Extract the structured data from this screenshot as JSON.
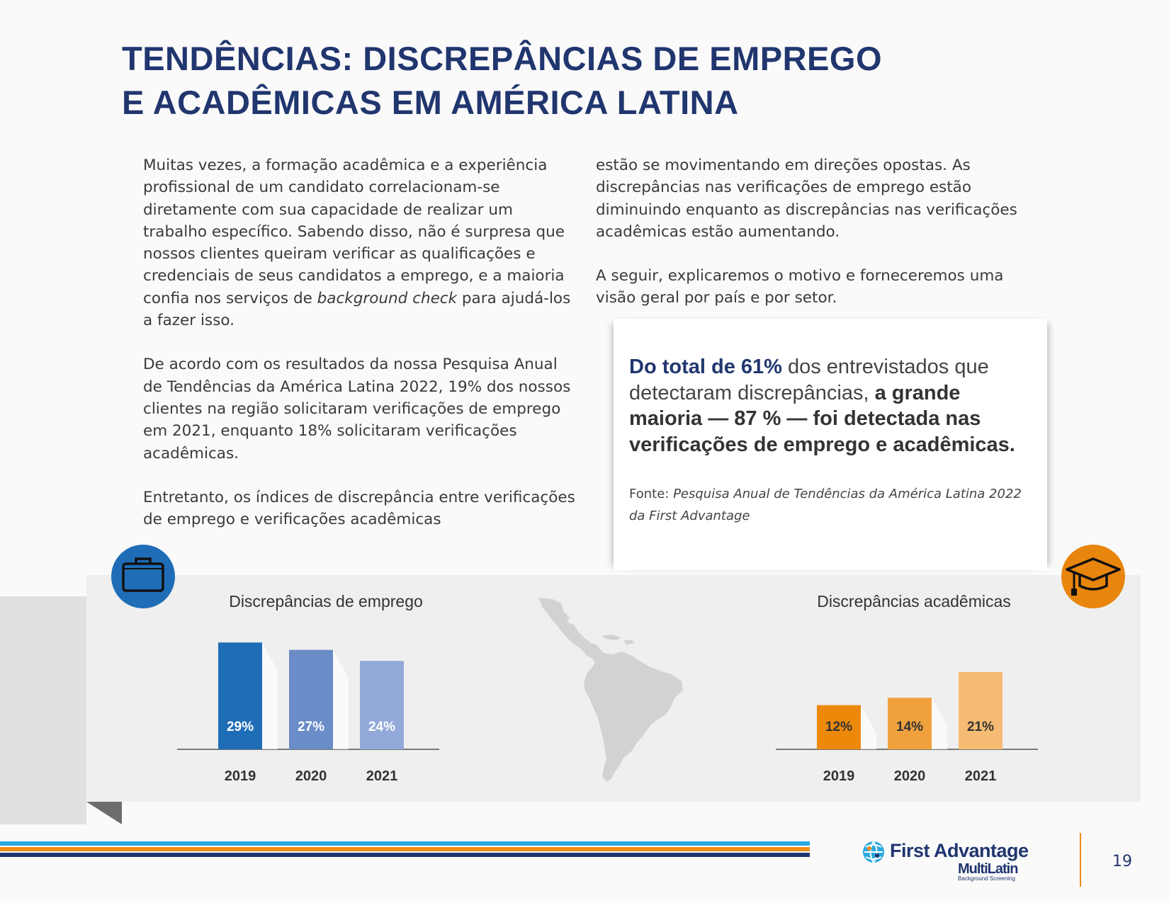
{
  "header": {
    "title_line1": "TENDÊNCIAS: DISCREPÂNCIAS DE EMPREGO",
    "title_line2": "E ACADÊMICAS EM AMÉRICA LATINA"
  },
  "body": {
    "p1_part1": "Muitas vezes, a formação acadêmica e a experiência profissional de um candidato correlacionam-se diretamente com sua capacidade de realizar um trabalho específico. Sabendo disso, não é surpresa que nossos clientes queiram verificar as qualificações e credenciais de seus candidatos a emprego, e a maioria confia nos serviços de ",
    "p1_italic": "background check",
    "p1_part2": " para ajudá-los a fazer isso.",
    "p2": "De acordo com os resultados da nossa Pesquisa Anual de Tendências da América Latina 2022, 19% dos nossos clientes na região solicitaram verificações de emprego em 2021, enquanto 18% solicitaram verificações acadêmicas.",
    "p3": "Entretanto, os índices de discrepância entre verificações de emprego e verificações acadêmicas",
    "p4": "estão se movimentando em direções opostas. As discrepâncias nas verificações de emprego estão diminuindo enquanto as discrepâncias nas verificações acadêmicas estão aumentando.",
    "p5": "A seguir, explicaremos o motivo e forneceremos uma visão geral por país e por setor."
  },
  "callout": {
    "highlight": "Do total de 61%",
    "text1": " dos entrevistados que detectaram discrepâncias, ",
    "bold": "a grande maioria — 87 % — foi detectada nas verificações de emprego e acadêmicas.",
    "source_label": "Fonte: ",
    "source_italic": "Pesquisa Anual de Tendências da América Latina 2022 da First Advantage"
  },
  "icons": {
    "employment": "briefcase-icon",
    "academic": "graduation-cap-icon"
  },
  "colors": {
    "navy": "#21366f",
    "blue": "#1f6db7",
    "orange": "#e8850d",
    "light_blue": "#29a8e0"
  },
  "chart_data": [
    {
      "type": "bar",
      "title": "Discrepâncias de emprego",
      "categories": [
        "2019",
        "2020",
        "2021"
      ],
      "values": [
        29,
        27,
        24
      ],
      "labels": [
        "29%",
        "27%",
        "24%"
      ],
      "colors": [
        "#1f6db7",
        "#6a8cc7",
        "#92a9d9"
      ],
      "ylim": [
        0,
        30
      ]
    },
    {
      "type": "bar",
      "title": "Discrepâncias acadêmicas",
      "categories": [
        "2019",
        "2020",
        "2021"
      ],
      "values": [
        12,
        14,
        21
      ],
      "labels": [
        "12%",
        "14%",
        "21%"
      ],
      "colors": [
        "#ec890b",
        "#f0a13e",
        "#f5bb73"
      ],
      "ylim": [
        0,
        30
      ]
    }
  ],
  "footer": {
    "logo_name": "First Advantage",
    "logo_sub": "MultiLatin",
    "logo_tagline": "Background Screening",
    "page_number": "19"
  }
}
